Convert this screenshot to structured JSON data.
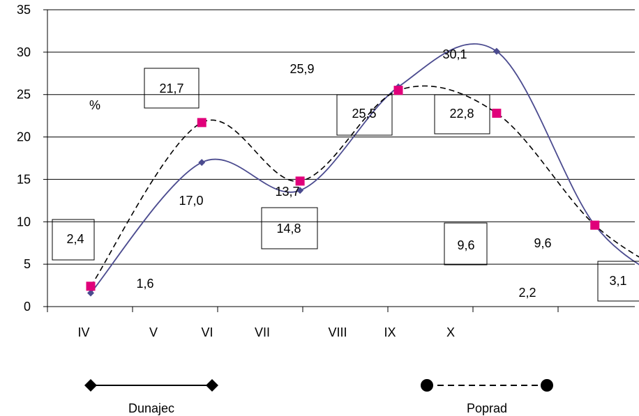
{
  "chart_data": {
    "type": "line",
    "categories": [
      "IV",
      "V",
      "VI",
      "VII",
      "VIII",
      "IX",
      "X"
    ],
    "ylim": [
      0,
      35
    ],
    "yticks": [
      "0",
      "5",
      "10",
      "15",
      "20",
      "25",
      "30",
      "35"
    ],
    "unit_label": "%",
    "grid": true,
    "legend": "bottom",
    "series": [
      {
        "name": "Dunajec",
        "color": "#4b4b8f",
        "marker": "diamond",
        "line_style": "solid",
        "x": [
          0,
          1.3,
          2.45,
          3.6,
          4.75,
          5.9,
          6.9
        ],
        "values": [
          1.6,
          17.0,
          13.7,
          25.9,
          30.1,
          9.6,
          2.2
        ]
      },
      {
        "name": "Poprad",
        "color": "#e0007a",
        "line_color": "#000000",
        "marker": "square",
        "line_style": "dashed",
        "x": [
          0,
          1.3,
          2.45,
          3.6,
          4.75,
          5.9,
          6.9
        ],
        "values": [
          2.4,
          21.7,
          14.8,
          25.5,
          22.8,
          9.6,
          3.1
        ]
      }
    ],
    "data_labels": [
      "2,4",
      "1,6",
      "21,7",
      "17,0",
      "13,7",
      "14,8",
      "25,9",
      "25,5",
      "30,1",
      "22,8",
      "9,6",
      "9,6",
      "2,2",
      "3,1"
    ],
    "legend_entries": [
      "Dunajec",
      "Poprad"
    ]
  }
}
